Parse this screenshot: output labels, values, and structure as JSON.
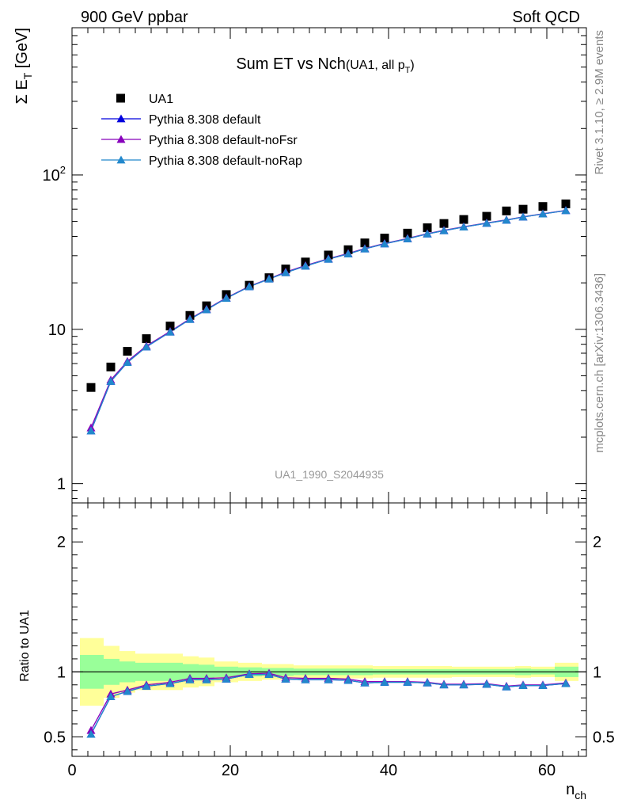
{
  "header": {
    "left": "900 GeV ppbar",
    "right": "Soft QCD"
  },
  "side_text": {
    "rivet": "Rivet 3.1.10, ≥ 2.9M events",
    "mcplots": "mcplots.cern.ch [arXiv:1306.3436]"
  },
  "colors": {
    "data": "#000000",
    "default": "#0000dd",
    "noFsr": "#8800bb",
    "noRap": "#2288cc",
    "band_yellow": "#ffff99",
    "band_green": "#99ff99"
  },
  "chart_data": [
    {
      "type": "scatter",
      "title": "Sum ET vs Nch",
      "title_suffix": "(UA1, all p",
      "title_suffix_sub": "T",
      "title_suffix_end": ")",
      "ylabel_main": "Σ E",
      "ylabel_sub": "T",
      "ylabel_unit": " [GeV]",
      "yscale": "log",
      "ylim": [
        0.75,
        900
      ],
      "xlim": [
        0,
        65
      ],
      "yticks": [
        {
          "value": 1,
          "label": "1"
        },
        {
          "value": 10,
          "label": "10"
        },
        {
          "value": 100,
          "label": "10",
          "sup": "2"
        }
      ],
      "watermark": "UA1_1990_S2044935",
      "legend_position": "top-left",
      "x": [
        2.4,
        4.9,
        7.0,
        9.4,
        12.4,
        14.9,
        17.0,
        19.5,
        22.4,
        24.9,
        27.0,
        29.5,
        32.4,
        34.9,
        37.0,
        39.5,
        42.4,
        44.9,
        47.0,
        49.5,
        52.4,
        54.9,
        57.0,
        59.5,
        62.4
      ],
      "series": [
        {
          "name": "UA1",
          "marker": "square",
          "color": "#000000",
          "values": [
            4.2,
            5.7,
            7.2,
            8.7,
            10.5,
            12.3,
            14.2,
            16.8,
            19.3,
            21.6,
            24.6,
            27.3,
            30.3,
            32.8,
            36.3,
            39.0,
            42.0,
            45.5,
            48.5,
            51.5,
            54.0,
            58.5,
            60.0,
            62.5,
            65.0
          ]
        },
        {
          "name": "Pythia 8.308 default",
          "marker": "triangle",
          "color": "#0000dd",
          "values": [
            2.2,
            4.6,
            6.1,
            7.7,
            9.6,
            11.6,
            13.4,
            15.9,
            18.9,
            21.2,
            23.3,
            25.7,
            28.5,
            30.8,
            33.2,
            35.8,
            38.6,
            41.5,
            43.6,
            46.0,
            48.7,
            51.0,
            53.4,
            55.9,
            58.8
          ]
        },
        {
          "name": "Pythia 8.308 default-noFsr",
          "marker": "triangle",
          "color": "#8800bb",
          "values": [
            2.3,
            4.7,
            6.2,
            7.8,
            9.7,
            11.7,
            13.5,
            16.0,
            19.0,
            21.3,
            23.5,
            25.9,
            28.7,
            31.0,
            33.4,
            36.0,
            38.8,
            41.7,
            43.8,
            46.2,
            48.9,
            51.2,
            53.6,
            56.1,
            59.0
          ]
        },
        {
          "name": "Pythia 8.308 default-noRap",
          "marker": "triangle",
          "color": "#2288cc",
          "values": [
            2.2,
            4.6,
            6.1,
            7.7,
            9.6,
            11.6,
            13.4,
            15.9,
            18.9,
            21.2,
            23.3,
            25.7,
            28.5,
            30.8,
            33.2,
            35.8,
            38.6,
            41.5,
            43.6,
            46.0,
            48.7,
            51.0,
            53.4,
            55.9,
            58.8
          ]
        }
      ]
    },
    {
      "type": "line",
      "ylabel": "Ratio to UA1",
      "xlabel": "n",
      "xlabel_sub": "ch",
      "xlim": [
        0,
        65
      ],
      "ylim": [
        0.35,
        2.3
      ],
      "xticks": [
        0,
        20,
        40,
        60
      ],
      "yticks": [
        {
          "value": 0.5,
          "label": "0.5"
        },
        {
          "value": 1,
          "label": "1"
        },
        {
          "value": 2,
          "label": "2"
        }
      ],
      "reference_line": 1,
      "bins": [
        {
          "lo": 1,
          "hi": 4,
          "yellow": [
            0.74,
            1.26
          ],
          "green": [
            0.87,
            1.13
          ]
        },
        {
          "lo": 4,
          "hi": 6,
          "yellow": [
            0.8,
            1.2
          ],
          "green": [
            0.9,
            1.1
          ]
        },
        {
          "lo": 6,
          "hi": 8,
          "yellow": [
            0.84,
            1.16
          ],
          "green": [
            0.92,
            1.08
          ]
        },
        {
          "lo": 8,
          "hi": 11,
          "yellow": [
            0.86,
            1.14
          ],
          "green": [
            0.93,
            1.07
          ]
        },
        {
          "lo": 11,
          "hi": 14,
          "yellow": [
            0.86,
            1.14
          ],
          "green": [
            0.93,
            1.07
          ]
        },
        {
          "lo": 14,
          "hi": 16,
          "yellow": [
            0.88,
            1.12
          ],
          "green": [
            0.94,
            1.06
          ]
        },
        {
          "lo": 16,
          "hi": 18,
          "yellow": [
            0.89,
            1.11
          ],
          "green": [
            0.945,
            1.055
          ]
        },
        {
          "lo": 18,
          "hi": 21,
          "yellow": [
            0.92,
            1.08
          ],
          "green": [
            0.96,
            1.04
          ]
        },
        {
          "lo": 21,
          "hi": 24,
          "yellow": [
            0.93,
            1.07
          ],
          "green": [
            0.965,
            1.035
          ]
        },
        {
          "lo": 24,
          "hi": 26,
          "yellow": [
            0.94,
            1.06
          ],
          "green": [
            0.97,
            1.03
          ]
        },
        {
          "lo": 26,
          "hi": 28,
          "yellow": [
            0.94,
            1.06
          ],
          "green": [
            0.97,
            1.03
          ]
        },
        {
          "lo": 28,
          "hi": 31,
          "yellow": [
            0.95,
            1.05
          ],
          "green": [
            0.975,
            1.025
          ]
        },
        {
          "lo": 31,
          "hi": 34,
          "yellow": [
            0.95,
            1.05
          ],
          "green": [
            0.975,
            1.025
          ]
        },
        {
          "lo": 34,
          "hi": 36,
          "yellow": [
            0.95,
            1.05
          ],
          "green": [
            0.975,
            1.025
          ]
        },
        {
          "lo": 36,
          "hi": 38,
          "yellow": [
            0.95,
            1.05
          ],
          "green": [
            0.975,
            1.025
          ]
        },
        {
          "lo": 38,
          "hi": 41,
          "yellow": [
            0.955,
            1.045
          ],
          "green": [
            0.98,
            1.02
          ]
        },
        {
          "lo": 41,
          "hi": 44,
          "yellow": [
            0.955,
            1.045
          ],
          "green": [
            0.98,
            1.02
          ]
        },
        {
          "lo": 44,
          "hi": 46,
          "yellow": [
            0.955,
            1.045
          ],
          "green": [
            0.98,
            1.02
          ]
        },
        {
          "lo": 46,
          "hi": 48,
          "yellow": [
            0.955,
            1.045
          ],
          "green": [
            0.98,
            1.02
          ]
        },
        {
          "lo": 48,
          "hi": 51,
          "yellow": [
            0.96,
            1.04
          ],
          "green": [
            0.98,
            1.02
          ]
        },
        {
          "lo": 51,
          "hi": 54,
          "yellow": [
            0.96,
            1.04
          ],
          "green": [
            0.98,
            1.02
          ]
        },
        {
          "lo": 54,
          "hi": 56,
          "yellow": [
            0.96,
            1.04
          ],
          "green": [
            0.98,
            1.02
          ]
        },
        {
          "lo": 56,
          "hi": 58,
          "yellow": [
            0.955,
            1.045
          ],
          "green": [
            0.975,
            1.025
          ]
        },
        {
          "lo": 58,
          "hi": 61,
          "yellow": [
            0.96,
            1.04
          ],
          "green": [
            0.98,
            1.02
          ]
        },
        {
          "lo": 61,
          "hi": 64,
          "yellow": [
            0.93,
            1.07
          ],
          "green": [
            0.96,
            1.04
          ]
        }
      ],
      "x": [
        2.4,
        4.9,
        7.0,
        9.4,
        12.4,
        14.9,
        17.0,
        19.5,
        22.4,
        24.9,
        27.0,
        29.5,
        32.4,
        34.9,
        37.0,
        39.5,
        42.4,
        44.9,
        47.0,
        49.5,
        52.4,
        54.9,
        57.0,
        59.5,
        62.4
      ],
      "series": [
        {
          "name": "Pythia 8.308 default",
          "color": "#0000dd",
          "values": [
            0.52,
            0.81,
            0.85,
            0.89,
            0.91,
            0.94,
            0.94,
            0.945,
            0.98,
            0.98,
            0.945,
            0.94,
            0.94,
            0.935,
            0.915,
            0.92,
            0.92,
            0.915,
            0.9,
            0.9,
            0.905,
            0.885,
            0.895,
            0.895,
            0.91
          ]
        },
        {
          "name": "Pythia 8.308 default-noFsr",
          "color": "#8800bb",
          "values": [
            0.55,
            0.83,
            0.86,
            0.9,
            0.92,
            0.95,
            0.95,
            0.955,
            0.985,
            0.99,
            0.955,
            0.95,
            0.95,
            0.945,
            0.925,
            0.925,
            0.925,
            0.92,
            0.905,
            0.905,
            0.91,
            0.89,
            0.9,
            0.9,
            0.915
          ]
        },
        {
          "name": "Pythia 8.308 default-noRap",
          "color": "#2288cc",
          "values": [
            0.52,
            0.81,
            0.85,
            0.89,
            0.91,
            0.94,
            0.94,
            0.945,
            0.98,
            0.98,
            0.945,
            0.94,
            0.94,
            0.935,
            0.915,
            0.92,
            0.92,
            0.915,
            0.9,
            0.9,
            0.905,
            0.885,
            0.895,
            0.895,
            0.91
          ]
        }
      ]
    }
  ]
}
